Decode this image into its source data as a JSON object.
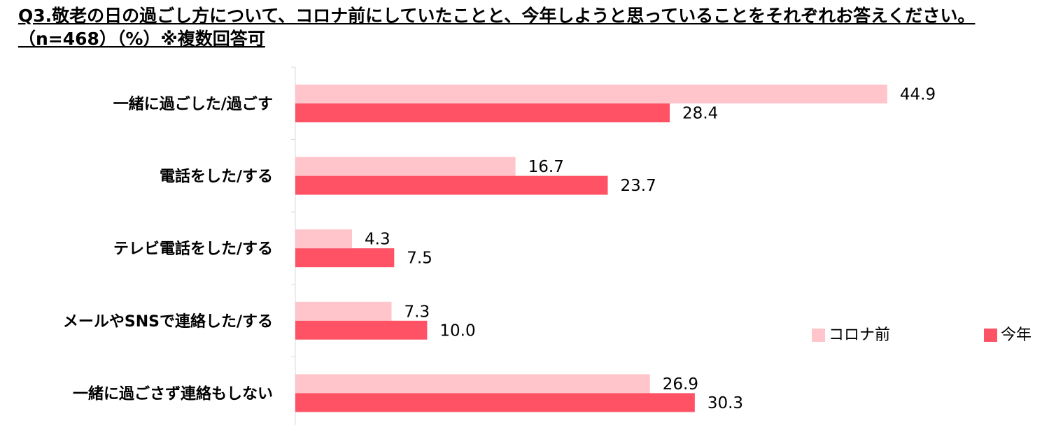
{
  "chart_data": {
    "type": "bar",
    "orientation": "horizontal",
    "title": "Q3.敬老の日の過ごし方について、コロナ前にしていたことと、今年しようと思っていることをそれぞれお答えください。（n=468）（%）※複数回答可",
    "categories": [
      "一緒に過ごした/過ごす",
      "電話をした/する",
      "テレビ電話をした/する",
      "メールやSNSで連絡した/する",
      "一緒に過ごさず連絡もしない"
    ],
    "series": [
      {
        "name": "コロナ前",
        "values": [
          44.9,
          16.7,
          4.3,
          7.3,
          26.9
        ],
        "labels": [
          "44.9",
          "16.7",
          "4.3",
          "7.3",
          "26.9"
        ],
        "color": "#FFC5CB"
      },
      {
        "name": "今年",
        "values": [
          28.4,
          23.7,
          7.5,
          10.0,
          30.3
        ],
        "labels": [
          "28.4",
          "23.7",
          "7.5",
          "10.0",
          "30.3"
        ],
        "color": "#FF5365"
      }
    ],
    "xlim": [
      0,
      50
    ],
    "grid": false,
    "legend": "right"
  }
}
